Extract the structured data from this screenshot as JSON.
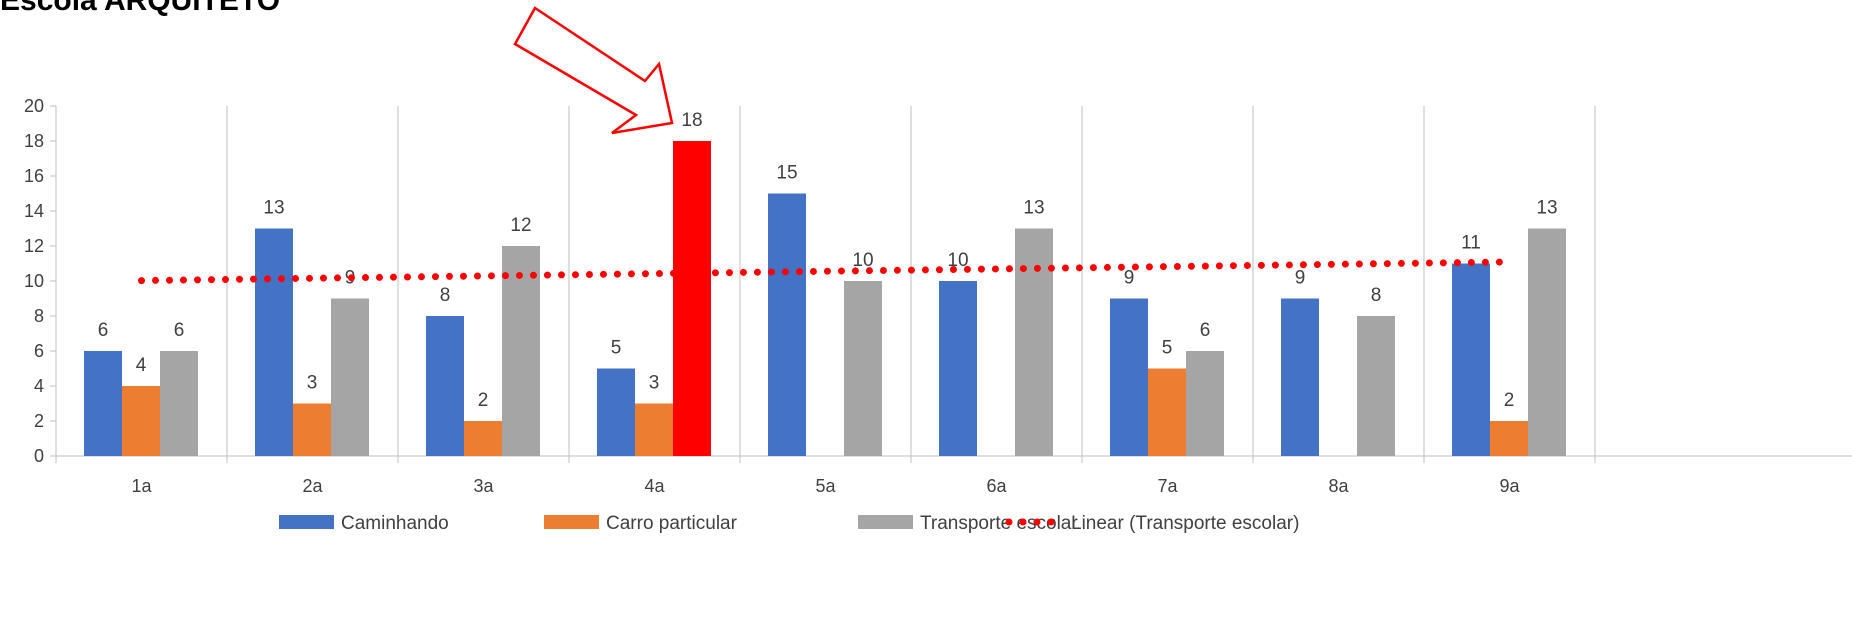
{
  "chart_data": {
    "type": "bar",
    "title": "Escola ARQUITETO",
    "categories": [
      "1a",
      "2a",
      "3a",
      "4a",
      "5a",
      "6a",
      "7a",
      "8a",
      "9a"
    ],
    "series": [
      {
        "name": "Caminhando",
        "color": "#4472C4",
        "values": [
          6,
          13,
          8,
          5,
          15,
          10,
          9,
          9,
          11
        ]
      },
      {
        "name": "Carro particular",
        "color": "#ED7D31",
        "values": [
          4,
          3,
          2,
          3,
          null,
          null,
          5,
          null,
          2
        ]
      },
      {
        "name": "Transporte escolar",
        "color": "#A5A5A5",
        "values": [
          6,
          9,
          12,
          18,
          10,
          13,
          6,
          8,
          13
        ]
      }
    ],
    "highlight": {
      "series": "Transporte escolar",
      "category": "4a",
      "color": "#FF0000"
    },
    "trendline": {
      "name": "Linear (Transporte escolar)",
      "series": "Transporte escolar",
      "type": "linear",
      "color": "#FF0000",
      "style": "dotted"
    },
    "annotation": {
      "type": "arrow",
      "color": "#FF0000",
      "points_to": "4a"
    },
    "ylim": [
      0,
      20
    ],
    "yticks": [
      0,
      2,
      4,
      6,
      8,
      10,
      12,
      14,
      16,
      18,
      20
    ],
    "grid": "vertical category separators",
    "legend_position": "bottom"
  }
}
